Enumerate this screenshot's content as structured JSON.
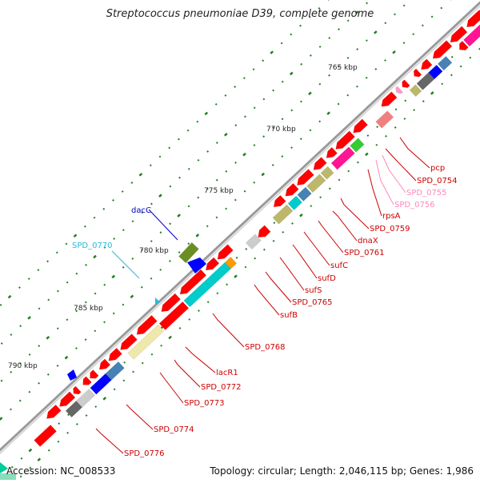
{
  "title": "Streptococcus pneumoniae D39, complete genome",
  "footer": {
    "accession": "Accession: NC_008533",
    "topology": "Topology: circular; Length: 2,046,115 bp; Genes: 1,986"
  },
  "colors": {
    "backbone": "#8c8c8c",
    "tick": "#208020",
    "cds": "#ff0000",
    "magenta": "#ff1493",
    "pink": "#ff99cc",
    "salmon": "#f08080",
    "khaki": "#bdb76b",
    "darkgray": "#666666",
    "steelblue": "#4682b4",
    "blue": "#0000ff",
    "green": "#33cc33",
    "olive": "#6b8e23",
    "cyan": "#00cccc",
    "lightgray": "#cccccc",
    "paleyellow": "#eee8aa",
    "orange": "#ff9900",
    "labelRed": "#cc0000",
    "labelPink": "#ff88bb",
    "labelCyan": "#22bbdd",
    "labelBlue": "#0000cc"
  },
  "axis_labels": [
    "765 kbp",
    "770 kbp",
    "775 kbp",
    "780 kbp",
    "785 kbp",
    "790 kbp"
  ],
  "gene_labels": [
    {
      "text": "pcp",
      "color": "labelRed"
    },
    {
      "text": "SPD_0754",
      "color": "labelRed"
    },
    {
      "text": "SPD_0755",
      "color": "labelPink"
    },
    {
      "text": "SPD_0756",
      "color": "labelPink"
    },
    {
      "text": "rpsA",
      "color": "labelRed"
    },
    {
      "text": "SPD_0759",
      "color": "labelRed"
    },
    {
      "text": "dnaX",
      "color": "labelRed"
    },
    {
      "text": "SPD_0761",
      "color": "labelRed"
    },
    {
      "text": "sufC",
      "color": "labelRed"
    },
    {
      "text": "sufD",
      "color": "labelRed"
    },
    {
      "text": "sufS",
      "color": "labelRed"
    },
    {
      "text": "SPD_0765",
      "color": "labelRed"
    },
    {
      "text": "sufB",
      "color": "labelRed"
    },
    {
      "text": "SPD_0768",
      "color": "labelRed"
    },
    {
      "text": "lacR1",
      "color": "labelRed"
    },
    {
      "text": "SPD_0772",
      "color": "labelRed"
    },
    {
      "text": "SPD_0773",
      "color": "labelRed"
    },
    {
      "text": "SPD_0774",
      "color": "labelRed"
    },
    {
      "text": "SPD_0776",
      "color": "labelRed"
    },
    {
      "text": "dacC",
      "color": "labelBlue"
    },
    {
      "text": "SPD_0770",
      "color": "labelCyan"
    }
  ]
}
